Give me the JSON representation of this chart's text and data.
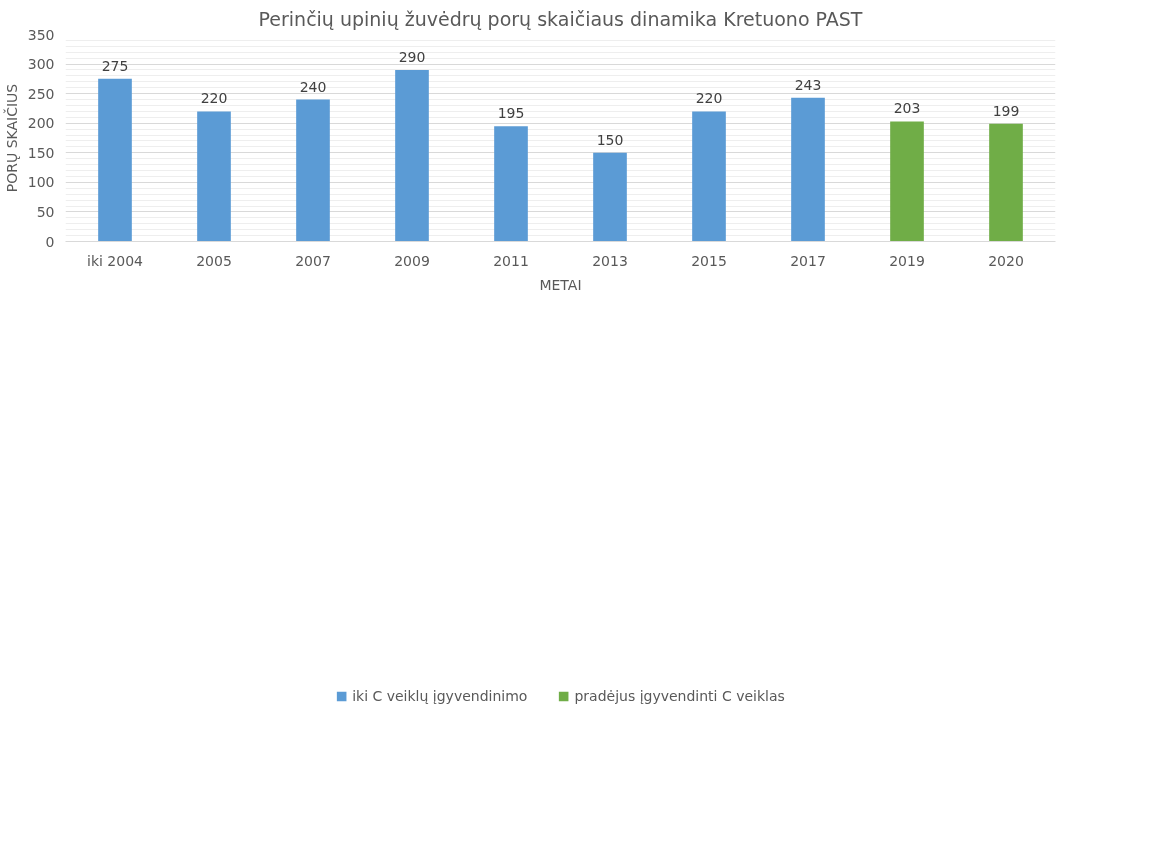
{
  "chart_data": {
    "type": "bar",
    "title": "Perinčių upinių žuvėdrų porų skaičiaus dinamika Kretuono PAST",
    "xlabel": "METAI",
    "ylabel": "PORŲ SKAIČIUS",
    "categories": [
      "iki 2004",
      "2005",
      "2007",
      "2009",
      "2011",
      "2013",
      "2015",
      "2017",
      "2019",
      "2020"
    ],
    "series": [
      {
        "name": "iki C veiklų įgyvendinimo",
        "color": "#5b9bd5",
        "values": [
          275,
          220,
          240,
          290,
          195,
          150,
          220,
          243,
          null,
          null
        ]
      },
      {
        "name": "pradėjus įgyvendinti C veiklas",
        "color": "#70ad47",
        "values": [
          null,
          null,
          null,
          null,
          null,
          null,
          null,
          null,
          203,
          199
        ]
      }
    ],
    "ylim": [
      0,
      350
    ],
    "yticks": [
      0,
      50,
      100,
      150,
      200,
      250,
      300,
      350
    ],
    "grid": "y",
    "legend": "bottom",
    "data_labels": true
  }
}
